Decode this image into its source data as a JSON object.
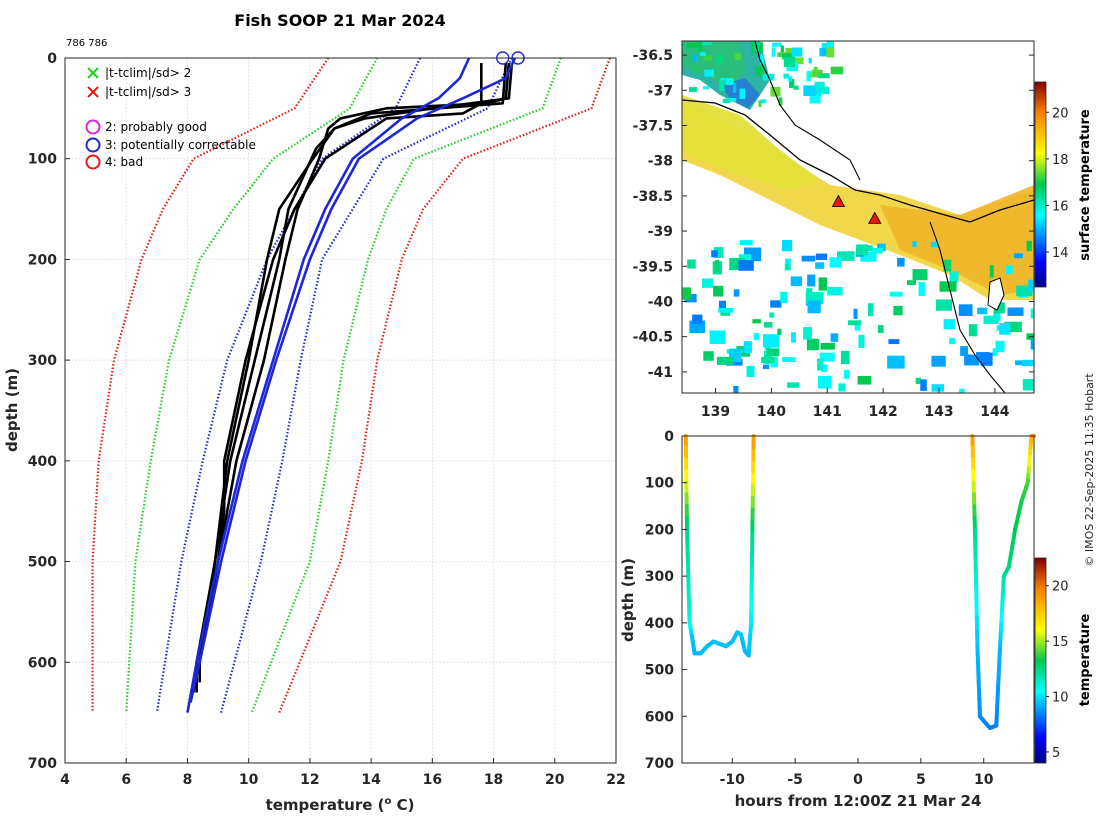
{
  "title": "Fish SOOP 21 Mar 2024",
  "id_label": "786 786",
  "watermark": "© IMOS 22-Sep-2025 11:35 Hobart",
  "chart_data": [
    {
      "type": "line",
      "name": "profile",
      "xlabel": "temperature (",
      "xlabel_sup": "o",
      "xlabel_tail": " C)",
      "ylabel": "depth (m)",
      "xlim": [
        4,
        22
      ],
      "ylim": [
        700,
        0
      ],
      "xticks": [
        4,
        6,
        8,
        10,
        12,
        14,
        16,
        18,
        20,
        22
      ],
      "yticks": [
        0,
        100,
        200,
        300,
        400,
        500,
        600,
        700
      ],
      "legend": [
        {
          "marker": "x",
          "color": "#19d31f",
          "label": "|t-tclim|/sd> 2"
        },
        {
          "marker": "x",
          "color": "#e81a0f",
          "label": "|t-tclim|/sd> 3"
        },
        {
          "marker": "o",
          "color": "#e020e0",
          "label": "2: probably good"
        },
        {
          "marker": "o",
          "color": "#1d27d6",
          "label": "3: potentially correctable"
        },
        {
          "marker": "o",
          "color": "#e81a0f",
          "label": "4: bad"
        }
      ],
      "envelopes": [
        {
          "name": "clim-3sd",
          "color": "#e81a0f",
          "depth": [
            0,
            50,
            100,
            150,
            200,
            300,
            400,
            500,
            650
          ],
          "low": [
            12.6,
            11.5,
            8.2,
            7.2,
            6.5,
            5.6,
            5.1,
            4.9,
            4.9
          ],
          "high": [
            21.8,
            21.2,
            17.0,
            15.7,
            15.0,
            14.2,
            13.7,
            13.0,
            11.0
          ]
        },
        {
          "name": "clim-2sd",
          "color": "#19d31f",
          "depth": [
            0,
            50,
            100,
            150,
            200,
            300,
            400,
            500,
            650
          ],
          "low": [
            14.2,
            13.3,
            10.8,
            9.5,
            8.4,
            7.4,
            6.8,
            6.3,
            6.0
          ],
          "high": [
            20.2,
            19.6,
            15.4,
            14.5,
            13.9,
            13.1,
            12.6,
            12.0,
            10.1
          ]
        },
        {
          "name": "clim-1sd",
          "color": "#1d27d6",
          "depth": [
            0,
            50,
            100,
            150,
            200,
            300,
            400,
            500,
            650
          ],
          "low": [
            15.6,
            14.8,
            12.4,
            11.5,
            10.6,
            9.3,
            8.5,
            7.8,
            7.0
          ],
          "high": [
            18.6,
            17.8,
            14.4,
            13.4,
            12.4,
            11.7,
            11.1,
            10.4,
            9.1
          ]
        }
      ],
      "series": [
        {
          "name": "profile-1",
          "color": "#000000",
          "depth": [
            5,
            40,
            45,
            50,
            60,
            70,
            100,
            150,
            200,
            300,
            400,
            500,
            600,
            630
          ],
          "temp": [
            18.5,
            18.4,
            17.8,
            14.5,
            13.0,
            12.6,
            12.3,
            11.6,
            11.2,
            10.5,
            9.6,
            9.0,
            8.3,
            8.2
          ]
        },
        {
          "name": "profile-2",
          "color": "#000000",
          "depth": [
            5,
            40,
            50,
            60,
            70,
            90,
            150,
            200,
            300,
            400,
            500,
            600,
            630
          ],
          "temp": [
            18.6,
            18.5,
            16.0,
            13.8,
            12.8,
            12.2,
            11.3,
            11.0,
            10.2,
            9.4,
            8.9,
            8.3,
            8.3
          ]
        },
        {
          "name": "profile-3",
          "color": "#000000",
          "depth": [
            5,
            45,
            55,
            70,
            100,
            150,
            200,
            300,
            400,
            500,
            600,
            620
          ],
          "temp": [
            18.4,
            18.3,
            14.0,
            12.8,
            12.1,
            11.0,
            10.6,
            10.0,
            9.3,
            8.9,
            8.4,
            8.2
          ]
        },
        {
          "name": "profile-4",
          "color": "#000000",
          "depth": [
            5,
            45,
            55,
            60,
            100,
            150,
            200,
            300,
            400,
            450,
            500,
            600,
            620
          ],
          "temp": [
            17.6,
            17.6,
            17.0,
            14.5,
            12.5,
            11.5,
            10.8,
            9.9,
            9.2,
            9.2,
            9.0,
            8.4,
            8.4
          ]
        },
        {
          "name": "profile-blue-1",
          "color": "#1d27d6",
          "depth": [
            0,
            20,
            40,
            60,
            100,
            150,
            200,
            300,
            400,
            500,
            600,
            650
          ],
          "temp": [
            17.2,
            16.9,
            16.2,
            15.0,
            13.4,
            12.5,
            11.8,
            10.8,
            9.8,
            9.0,
            8.3,
            8.0
          ]
        },
        {
          "name": "profile-blue-2",
          "color": "#1d27d6",
          "depth": [
            0,
            20,
            40,
            60,
            100,
            150,
            200,
            300,
            400,
            500,
            600,
            640
          ],
          "temp": [
            18.7,
            18.4,
            17.0,
            15.5,
            13.6,
            12.7,
            12.0,
            10.9,
            9.9,
            9.1,
            8.4,
            8.1
          ]
        }
      ],
      "flag_markers": [
        {
          "temp": 18.3,
          "depth": 0,
          "color": "#1d27d6"
        },
        {
          "temp": 18.8,
          "depth": 0,
          "color": "#1d27d6"
        }
      ]
    },
    {
      "type": "heatmap",
      "name": "map",
      "lon_range": [
        138.4,
        144.7
      ],
      "lat_range": [
        -41.3,
        -36.3
      ],
      "xticks": [
        139,
        140,
        141,
        142,
        143,
        144
      ],
      "yticks": [
        -36.5,
        -37,
        -37.5,
        -38,
        -38.5,
        -39,
        -39.5,
        -40,
        -40.5,
        -41
      ],
      "colorbar": {
        "label": "surface temperature",
        "range": [
          12.5,
          21.3
        ],
        "ticks": [
          14,
          16,
          18,
          20
        ]
      },
      "markers": [
        {
          "lon": 141.2,
          "lat": -38.58,
          "color": "#e81a0f"
        },
        {
          "lon": 141.85,
          "lat": -38.82,
          "color": "#e81a0f"
        }
      ]
    },
    {
      "type": "scatter",
      "name": "time-depth",
      "xlabel": "hours from 12:00Z 21 Mar 24",
      "ylabel": "depth (m)",
      "xlim": [
        -14,
        14
      ],
      "ylim": [
        700,
        0
      ],
      "xticks": [
        -10,
        -5,
        0,
        5,
        10
      ],
      "yticks": [
        0,
        100,
        200,
        300,
        400,
        500,
        600,
        700
      ],
      "colorbar": {
        "label": "temperature",
        "range": [
          4,
          22.5
        ],
        "ticks": [
          5,
          10,
          15,
          20
        ]
      },
      "tracks": [
        {
          "hours": [
            -13.7,
            -13.6,
            -13.4,
            -13.2,
            -13.0,
            -12.5,
            -12.0,
            -11.5,
            -11.0,
            -10.5,
            -10.0,
            -9.6,
            -9.3,
            -9.0,
            -8.7,
            -8.5,
            -8.4,
            -8.3
          ],
          "depth": [
            0,
            200,
            400,
            430,
            465,
            465,
            450,
            440,
            445,
            450,
            440,
            420,
            425,
            460,
            470,
            400,
            200,
            0
          ],
          "temp": [
            19.2,
            12.5,
            11.0,
            9.5,
            9.3,
            9.3,
            9.4,
            9.4,
            9.4,
            9.4,
            9.4,
            9.5,
            9.5,
            9.4,
            9.3,
            10.0,
            12.5,
            19.2
          ]
        },
        {
          "hours": [
            9.1,
            9.3,
            9.5,
            9.7,
            10.0,
            10.5,
            11.0,
            11.3,
            11.6,
            12.0,
            12.5,
            13.0,
            13.5,
            13.8,
            14.0
          ],
          "depth": [
            0,
            200,
            450,
            600,
            610,
            625,
            620,
            450,
            300,
            280,
            200,
            140,
            100,
            0,
            0
          ],
          "temp": [
            19.2,
            12.5,
            9.4,
            8.6,
            8.5,
            8.4,
            8.4,
            9.3,
            12.0,
            12.5,
            13.2,
            13.5,
            13.8,
            18.5,
            19.5
          ]
        }
      ]
    }
  ]
}
